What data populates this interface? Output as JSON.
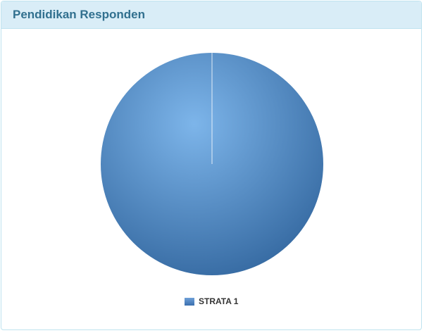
{
  "panel": {
    "title": "Pendidikan Responden"
  },
  "chart_data": {
    "type": "pie",
    "categories": [
      "STRATA 1"
    ],
    "values": [
      100
    ],
    "unit": "percent",
    "legend_position": "bottom",
    "colors": [
      "#4a7fbf"
    ]
  }
}
